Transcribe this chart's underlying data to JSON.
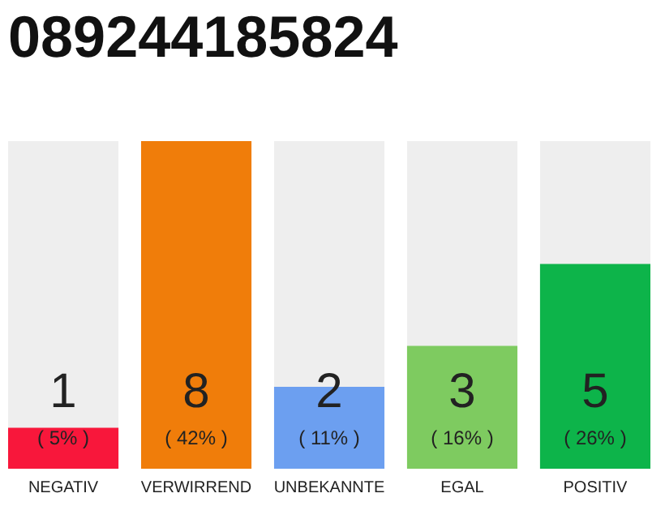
{
  "chart_data": {
    "type": "bar",
    "title": "089244185824",
    "categories": [
      "NEGATIV",
      "VERWIRREND",
      "UNBEKANNTE",
      "EGAL",
      "POSITIV"
    ],
    "values": [
      1,
      8,
      2,
      3,
      5
    ],
    "colors": [
      "#f8173b",
      "#f07d0a",
      "#6c9ff0",
      "#7ecb60",
      "#0db44a"
    ],
    "data_labels": true,
    "annotations": [
      "( 5% )",
      "( 42% )",
      "( 11% )",
      "( 16% )",
      "( 26% )"
    ],
    "ylim": [
      0,
      8
    ]
  }
}
